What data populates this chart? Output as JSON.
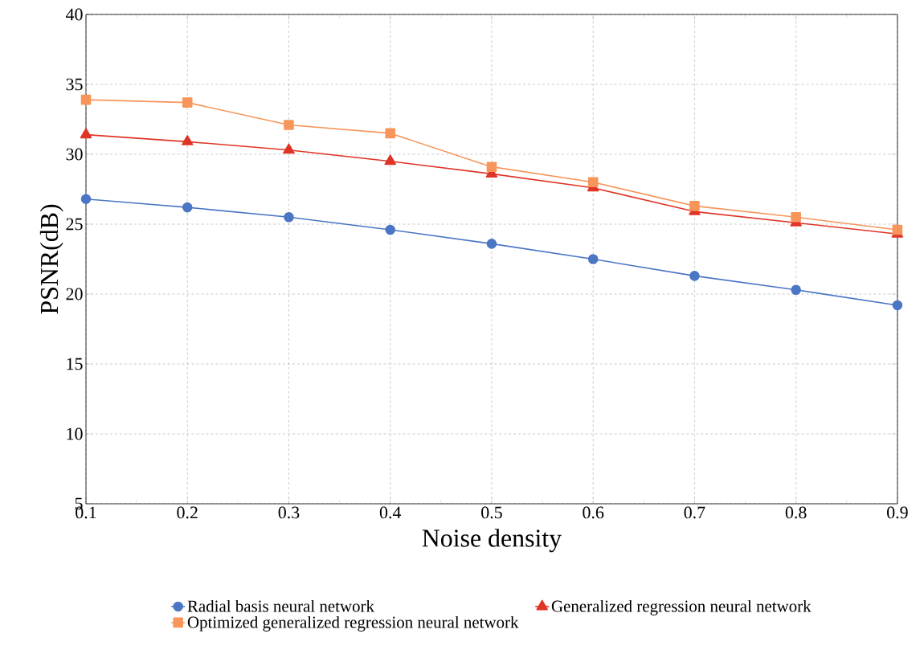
{
  "chart_data": {
    "type": "line",
    "xlabel": "Noise density",
    "ylabel": "PSNR(dB)",
    "x": [
      0.1,
      0.2,
      0.3,
      0.4,
      0.5,
      0.6,
      0.7,
      0.8,
      0.9
    ],
    "xlim": [
      0.1,
      0.9
    ],
    "xticks": [
      0.1,
      0.2,
      0.3,
      0.4,
      0.5,
      0.6,
      0.7,
      0.8,
      0.9
    ],
    "ylim": [
      5,
      40
    ],
    "yticks": [
      5,
      10,
      15,
      20,
      25,
      30,
      35,
      40
    ],
    "grid": true,
    "legend": "bottom",
    "line_style": "solid",
    "series": [
      {
        "name": "Radial basis neural network",
        "color": "#4a76c4",
        "marker": "circle",
        "values": [
          26.8,
          26.2,
          25.5,
          24.6,
          23.6,
          22.5,
          21.3,
          20.3,
          19.2
        ]
      },
      {
        "name": "Generalized regression neural network",
        "color": "#e03426",
        "marker": "triangle",
        "values": [
          31.4,
          30.9,
          30.3,
          29.5,
          28.6,
          27.6,
          25.9,
          25.1,
          24.3
        ]
      },
      {
        "name": "Optimized generalized regression neural network",
        "color": "#f7955a",
        "marker": "square",
        "values": [
          33.9,
          33.7,
          32.1,
          31.5,
          29.1,
          28.0,
          26.3,
          25.5,
          24.6
        ]
      }
    ]
  }
}
